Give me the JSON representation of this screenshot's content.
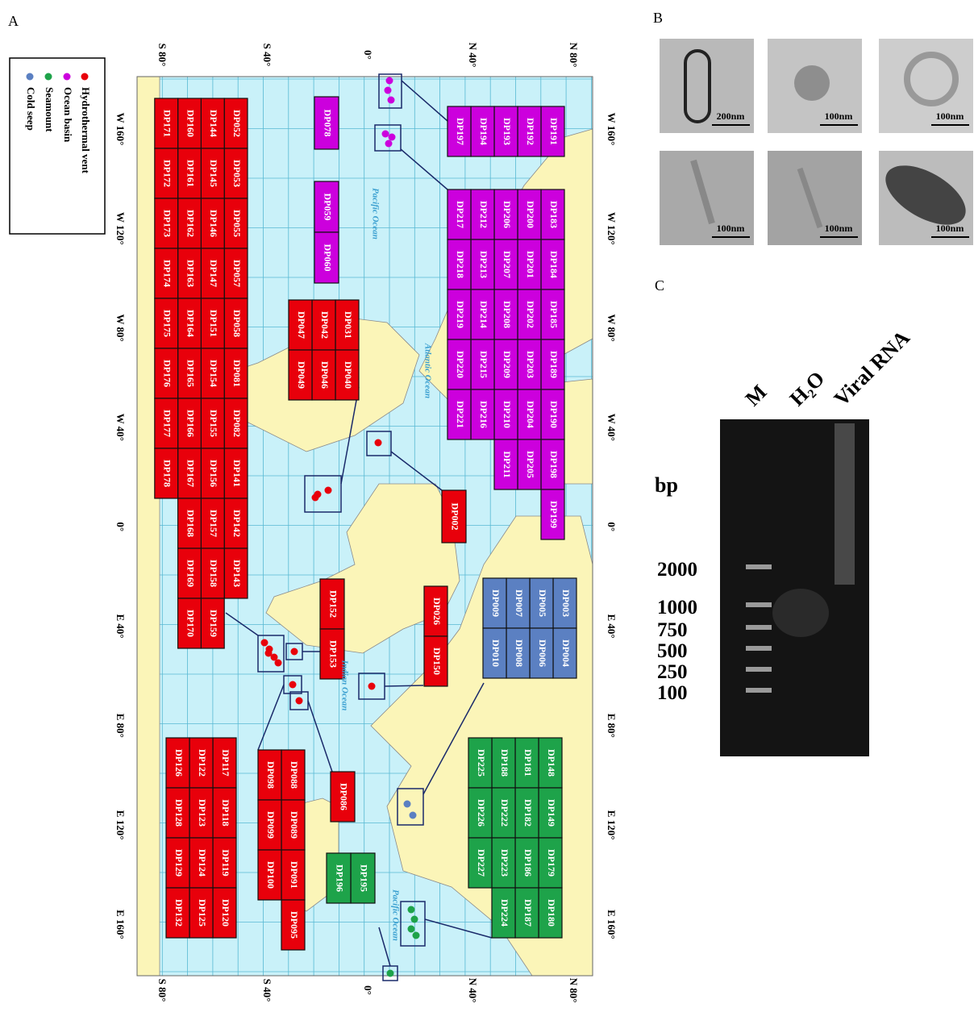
{
  "panel_labels": {
    "a": "A",
    "b": "B",
    "c": "C"
  },
  "legend": [
    {
      "label": "Hydrothermal vent",
      "color": "#e8000b"
    },
    {
      "label": "Ocean basin",
      "color": "#cc00dd"
    },
    {
      "label": "Seamount",
      "color": "#1ea34a"
    },
    {
      "label": "Cold seep",
      "color": "#5b80c2"
    }
  ],
  "map": {
    "lat_labels": [
      "N 80°",
      "N 40°",
      "0°",
      "S 40°",
      "S 80°"
    ],
    "lon_labels": [
      "W 160°",
      "W 120°",
      "W 80°",
      "W 40°",
      "0°",
      "E 40°",
      "E 80°",
      "E 120°",
      "E 160°"
    ],
    "ocean_labels": [
      "Pacific Ocean",
      "Atlantic Ocean",
      "Indian Ocean",
      "Pacific Ocean"
    ],
    "groups": [
      {
        "color": "#cc00dd",
        "columns": [
          [
            "DP191"
          ],
          [
            "DP192"
          ],
          [
            "DP193"
          ],
          [
            "DP194"
          ],
          [
            "DP197"
          ]
        ]
      },
      {
        "color": "#cc00dd",
        "columns": [
          [
            "DP183",
            "DP184",
            "DP185",
            "DP189",
            "DP190",
            "DP198",
            "DP199"
          ],
          [
            "DP200",
            "DP201",
            "DP202",
            "DP203",
            "DP204",
            "DP205"
          ],
          [
            "DP206",
            "DP207",
            "DP208",
            "DP209",
            "DP210",
            "DP211"
          ],
          [
            "DP212",
            "DP213",
            "DP214",
            "DP215",
            "DP216"
          ],
          [
            "DP217",
            "DP218",
            "DP219",
            "DP220",
            "DP221"
          ]
        ]
      },
      {
        "color": "#cc00dd",
        "columns": [
          [
            "DP078"
          ]
        ]
      },
      {
        "color": "#cc00dd",
        "columns": [
          [
            "DP059",
            "DP060"
          ]
        ]
      },
      {
        "color": "#e8000b",
        "columns": [
          [
            "DP052",
            "DP053",
            "DP055",
            "DP057",
            "DP058",
            "DP081",
            "DP082",
            "DP141",
            "DP142",
            "DP143"
          ],
          [
            "DP144",
            "DP145",
            "DP146",
            "DP147",
            "DP151",
            "DP154",
            "DP155",
            "DP156",
            "DP157",
            "DP158",
            "DP159"
          ],
          [
            "DP160",
            "DP161",
            "DP162",
            "DP163",
            "DP164",
            "DP165",
            "DP166",
            "DP167",
            "DP168",
            "DP169",
            "DP170"
          ],
          [
            "DP171",
            "DP172",
            "DP173",
            "DP174",
            "DP175",
            "DP176",
            "DP177",
            "DP178"
          ]
        ]
      },
      {
        "color": "#e8000b",
        "columns": [
          [
            "DP031",
            "DP040"
          ],
          [
            "DP042",
            "DP046"
          ],
          [
            "DP047",
            "DP049"
          ]
        ]
      },
      {
        "color": "#e8000b",
        "columns": [
          [
            "DP002"
          ]
        ]
      },
      {
        "color": "#e8000b",
        "columns": [
          [
            "DP026",
            "DP150"
          ]
        ]
      },
      {
        "color": "#e8000b",
        "columns": [
          [
            "DP152",
            "DP153"
          ]
        ]
      },
      {
        "color": "#e8000b",
        "columns": [
          [
            "DP086"
          ]
        ]
      },
      {
        "color": "#e8000b",
        "columns": [
          [
            "DP117",
            "DP118",
            "DP119",
            "DP120"
          ],
          [
            "DP122",
            "DP123",
            "DP124",
            "DP125"
          ],
          [
            "DP126",
            "DP128",
            "DP129",
            "DP132"
          ]
        ]
      },
      {
        "color": "#e8000b",
        "columns": [
          [
            "DP088",
            "DP089",
            "DP091",
            "DP095"
          ],
          [
            "DP098",
            "DP099",
            "DP100"
          ]
        ]
      },
      {
        "color": "#5b80c2",
        "columns": [
          [
            "DP003",
            "DP004"
          ],
          [
            "DP005",
            "DP006"
          ],
          [
            "DP007",
            "DP008"
          ],
          [
            "DP009",
            "DP010"
          ]
        ]
      },
      {
        "color": "#1ea34a",
        "columns": [
          [
            "DP148",
            "DP149",
            "DP179",
            "DP180"
          ],
          [
            "DP181",
            "DP182",
            "DP186",
            "DP187"
          ],
          [
            "DP188",
            "DP222",
            "DP223",
            "DP224"
          ],
          [
            "DP225",
            "DP226",
            "DP227"
          ]
        ]
      },
      {
        "color": "#1ea34a",
        "columns": [
          [
            "DP195"
          ],
          [
            "DP196"
          ]
        ]
      }
    ]
  },
  "micrographs": {
    "scale_bars": [
      "200nm",
      "100nm",
      "100nm",
      "100nm",
      "100nm",
      "100nm"
    ]
  },
  "gel": {
    "lanes": [
      "M",
      "H₂O",
      "Viral RNA"
    ],
    "unit": "bp",
    "sizes": [
      "2000",
      "1000",
      "750",
      "500",
      "250",
      "100"
    ]
  }
}
